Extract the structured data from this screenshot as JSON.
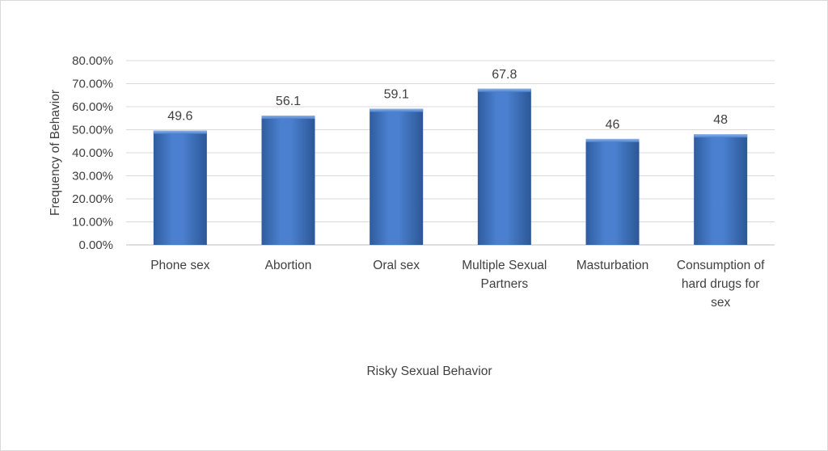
{
  "chart_data": {
    "type": "bar",
    "title": "",
    "xlabel": "Risky Sexual Behavior",
    "ylabel": "Frequency of Behavior",
    "categories": [
      [
        "Phone sex"
      ],
      [
        "Abortion"
      ],
      [
        "Oral sex"
      ],
      [
        "Multiple Sexual",
        "Partners"
      ],
      [
        "Masturbation"
      ],
      [
        "Consumption of",
        "hard drugs for",
        "sex"
      ]
    ],
    "values": [
      49.6,
      56.1,
      59.1,
      67.8,
      46,
      48
    ],
    "data_labels": [
      "49.6",
      "56.1",
      "59.1",
      "67.8",
      "46",
      "48"
    ],
    "ylim": [
      0,
      80
    ],
    "y_ticks": [
      "0.00%",
      "10.00%",
      "20.00%",
      "30.00%",
      "40.00%",
      "50.00%",
      "60.00%",
      "70.00%",
      "80.00%"
    ],
    "grid": true,
    "legend": "none",
    "colors": {
      "bar_top": "#6b97d8",
      "bar_mid": "#3f74c4",
      "bar_bottom": "#2f5c9f",
      "grid": "#d9d9d9",
      "text": "#404040"
    }
  }
}
